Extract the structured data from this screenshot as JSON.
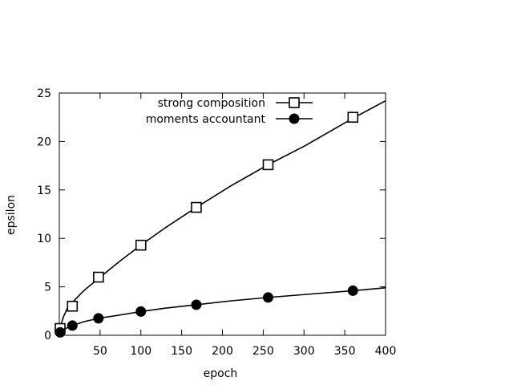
{
  "chart_data": {
    "type": "line",
    "title": "",
    "xlabel": "epoch",
    "ylabel": "epsilon",
    "xlim": [
      0,
      400
    ],
    "ylim": [
      0,
      25
    ],
    "xticks": [
      50,
      100,
      150,
      200,
      250,
      300,
      350,
      400
    ],
    "yticks": [
      0,
      5,
      10,
      15,
      20,
      25
    ],
    "grid": false,
    "legend_position": "top-right",
    "series": [
      {
        "name": "strong composition",
        "marker": "open-square",
        "color": "#000000",
        "curve": [
          [
            0,
            0
          ],
          [
            1,
            0.8
          ],
          [
            5,
            1.9
          ],
          [
            10,
            2.8
          ],
          [
            16,
            3.4
          ],
          [
            30,
            4.6
          ],
          [
            50,
            6.0
          ],
          [
            75,
            7.7
          ],
          [
            100,
            9.3
          ],
          [
            130,
            11.1
          ],
          [
            168,
            13.2
          ],
          [
            210,
            15.4
          ],
          [
            256,
            17.6
          ],
          [
            300,
            19.5
          ],
          [
            360,
            22.4
          ],
          [
            400,
            24.2
          ]
        ],
        "points": [
          [
            1,
            0.7
          ],
          [
            16,
            3.0
          ],
          [
            48,
            6.0
          ],
          [
            100,
            9.3
          ],
          [
            168,
            13.2
          ],
          [
            256,
            17.6
          ],
          [
            360,
            22.5
          ]
        ]
      },
      {
        "name": "moments accountant",
        "marker": "filled-circle",
        "color": "#000000",
        "curve": [
          [
            0,
            0
          ],
          [
            1,
            0.3
          ],
          [
            5,
            0.6
          ],
          [
            16,
            1.0
          ],
          [
            30,
            1.4
          ],
          [
            48,
            1.75
          ],
          [
            75,
            2.1
          ],
          [
            100,
            2.45
          ],
          [
            130,
            2.8
          ],
          [
            168,
            3.15
          ],
          [
            210,
            3.55
          ],
          [
            256,
            3.9
          ],
          [
            300,
            4.2
          ],
          [
            360,
            4.6
          ],
          [
            400,
            4.9
          ]
        ],
        "points": [
          [
            1,
            0.3
          ],
          [
            16,
            1.0
          ],
          [
            48,
            1.75
          ],
          [
            100,
            2.45
          ],
          [
            168,
            3.15
          ],
          [
            256,
            3.9
          ],
          [
            360,
            4.6
          ]
        ]
      }
    ]
  }
}
